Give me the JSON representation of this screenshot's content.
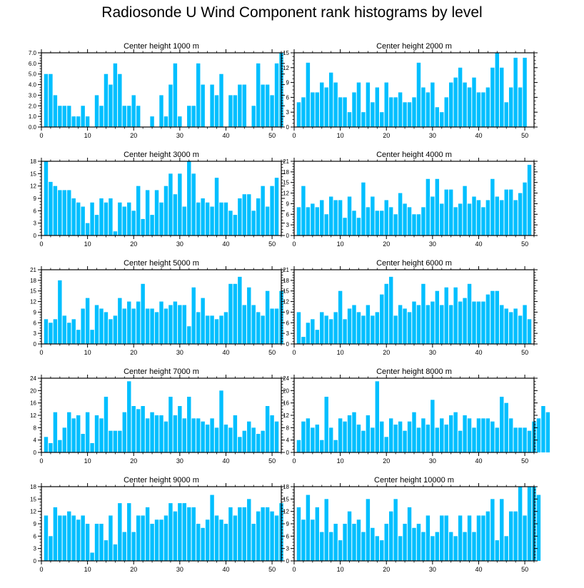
{
  "page_title": "Radiosonde U Wind Component rank histograms by level",
  "bar_color": "#00bfff",
  "chart_data": [
    {
      "type": "bar",
      "title": "Center height 1000 m",
      "xlim": [
        0,
        52
      ],
      "ylim": [
        0,
        7
      ],
      "yticks": [
        0,
        1,
        2,
        3,
        4,
        5,
        6,
        7
      ],
      "ytick_labels": [
        "0.0",
        "1.0",
        "2.0",
        "3.0",
        "4.0",
        "5.0",
        "6.0",
        "7.0"
      ],
      "xticks": [
        0,
        10,
        20,
        30,
        40,
        50
      ],
      "values": [
        5,
        5,
        3,
        2,
        2,
        2,
        1,
        1,
        2,
        1,
        0,
        3,
        2,
        5,
        4,
        6,
        5,
        2,
        2,
        3,
        2,
        0,
        0,
        1,
        0,
        3,
        1,
        4,
        6,
        1,
        0,
        2,
        2,
        6,
        4,
        0,
        4,
        3,
        5,
        0,
        3,
        3,
        4,
        4,
        0,
        2,
        6,
        4,
        4,
        3,
        6,
        7
      ]
    },
    {
      "type": "bar",
      "title": "Center height 2000 m",
      "xlim": [
        0,
        52
      ],
      "ylim": [
        0,
        15
      ],
      "yticks": [
        0,
        3,
        6,
        9,
        12,
        15
      ],
      "ytick_labels": [
        "0",
        "3",
        "6",
        "9",
        "12",
        "15"
      ],
      "xticks": [
        0,
        10,
        20,
        30,
        40,
        50
      ],
      "values": [
        5,
        6,
        13,
        7,
        7,
        9,
        8,
        11,
        9,
        6,
        6,
        3,
        7,
        9,
        3,
        9,
        5,
        8,
        3,
        9,
        6,
        6,
        7,
        5,
        5,
        6,
        13,
        8,
        7,
        9,
        4,
        3,
        6,
        9,
        10,
        12,
        9,
        8,
        10,
        7,
        7,
        8,
        12,
        15,
        12,
        5,
        8,
        14,
        8,
        14
      ]
    },
    {
      "type": "bar",
      "title": "Center height 3000 m",
      "xlim": [
        0,
        52
      ],
      "ylim": [
        0,
        18
      ],
      "yticks": [
        0,
        3,
        6,
        9,
        12,
        15,
        18
      ],
      "ytick_labels": [
        "0",
        "3",
        "6",
        "9",
        "12",
        "15",
        "18"
      ],
      "xticks": [
        0,
        10,
        20,
        30,
        40,
        50
      ],
      "values": [
        18,
        13,
        12,
        11,
        11,
        11,
        9,
        8,
        7,
        3,
        8,
        5,
        9,
        8,
        9,
        1,
        8,
        7,
        8,
        6,
        12,
        4,
        11,
        5,
        11,
        8,
        12,
        15,
        10,
        15,
        7,
        18,
        15,
        8,
        9,
        8,
        7,
        14,
        8,
        8,
        6,
        5,
        9,
        10,
        10,
        6,
        9,
        12,
        7,
        12,
        14
      ]
    },
    {
      "type": "bar",
      "title": "Center height 4000 m",
      "xlim": [
        0,
        52
      ],
      "ylim": [
        0,
        21
      ],
      "yticks": [
        0,
        3,
        6,
        9,
        12,
        15,
        18,
        21
      ],
      "ytick_labels": [
        "0",
        "3",
        "6",
        "9",
        "12",
        "15",
        "18",
        "21"
      ],
      "xticks": [
        0,
        10,
        20,
        30,
        40,
        50
      ],
      "values": [
        8,
        14,
        8,
        9,
        8,
        10,
        6,
        11,
        10,
        10,
        5,
        11,
        7,
        5,
        15,
        8,
        11,
        7,
        7,
        10,
        8,
        6,
        12,
        9,
        8,
        6,
        6,
        8,
        16,
        11,
        16,
        9,
        13,
        13,
        8,
        9,
        14,
        9,
        11,
        10,
        8,
        10,
        16,
        11,
        10,
        13,
        13,
        10,
        12,
        15,
        20
      ]
    },
    {
      "type": "bar",
      "title": "Center height 5000 m",
      "xlim": [
        0,
        52
      ],
      "ylim": [
        0,
        21
      ],
      "yticks": [
        0,
        3,
        6,
        9,
        12,
        15,
        18,
        21
      ],
      "ytick_labels": [
        "0",
        "3",
        "6",
        "9",
        "12",
        "15",
        "18",
        "21"
      ],
      "xticks": [
        0,
        10,
        20,
        30,
        40,
        50
      ],
      "values": [
        7,
        6,
        7,
        18,
        8,
        6,
        7,
        4,
        10,
        13,
        4,
        11,
        10,
        9,
        7,
        8,
        13,
        10,
        12,
        10,
        12,
        17,
        10,
        10,
        9,
        12,
        10,
        11,
        12,
        11,
        11,
        5,
        16,
        9,
        13,
        8,
        8,
        7,
        8,
        9,
        17,
        17,
        19,
        11,
        16,
        11,
        9,
        8,
        15,
        10,
        10,
        15
      ]
    },
    {
      "type": "bar",
      "title": "Center height 6000 m",
      "xlim": [
        0,
        52
      ],
      "ylim": [
        0,
        21
      ],
      "yticks": [
        0,
        3,
        6,
        9,
        12,
        15,
        18,
        21
      ],
      "ytick_labels": [
        "0",
        "3",
        "6",
        "9",
        "12",
        "15",
        "18",
        "21"
      ],
      "xticks": [
        0,
        10,
        20,
        30,
        40,
        50
      ],
      "values": [
        9,
        2,
        6,
        7,
        4,
        9,
        8,
        7,
        9,
        15,
        7,
        10,
        11,
        9,
        8,
        11,
        8,
        9,
        14,
        17,
        19,
        8,
        11,
        10,
        9,
        12,
        11,
        17,
        11,
        12,
        15,
        11,
        16,
        11,
        16,
        12,
        13,
        17,
        12,
        12,
        12,
        14,
        15,
        15,
        11,
        10,
        9,
        10,
        8,
        11,
        7
      ]
    },
    {
      "type": "bar",
      "title": "Center height 7000 m",
      "xlim": [
        0,
        52
      ],
      "ylim": [
        0,
        24
      ],
      "yticks": [
        0,
        4,
        8,
        12,
        16,
        20,
        24
      ],
      "ytick_labels": [
        "0",
        "4",
        "8",
        "12",
        "16",
        "20",
        "24"
      ],
      "xticks": [
        0,
        10,
        20,
        30,
        40,
        50
      ],
      "values": [
        5,
        3,
        13,
        4,
        8,
        13,
        11,
        12,
        6,
        13,
        3,
        12,
        11,
        18,
        7,
        7,
        7,
        13,
        23,
        15,
        14,
        15,
        11,
        13,
        12,
        12,
        10,
        18,
        12,
        15,
        11,
        18,
        11,
        11,
        10,
        9,
        11,
        8,
        20,
        9,
        8,
        12,
        5,
        7,
        10,
        8,
        6,
        7,
        15,
        12,
        10
      ]
    },
    {
      "type": "bar",
      "title": "Center height 8000 m",
      "xlim": [
        0,
        52
      ],
      "ylim": [
        0,
        24
      ],
      "yticks": [
        0,
        4,
        8,
        12,
        16,
        20,
        24
      ],
      "ytick_labels": [
        "0",
        "4",
        "8",
        "12",
        "16",
        "20",
        "24"
      ],
      "xticks": [
        0,
        10,
        20,
        30,
        40,
        50
      ],
      "values": [
        4,
        10,
        11,
        8,
        9,
        4,
        18,
        8,
        4,
        11,
        10,
        12,
        13,
        9,
        7,
        12,
        8,
        23,
        10,
        5,
        11,
        9,
        10,
        7,
        10,
        13,
        8,
        11,
        9,
        17,
        8,
        11,
        9,
        12,
        13,
        7,
        12,
        11,
        8,
        11,
        11,
        11,
        10,
        8,
        18,
        16,
        11,
        8,
        8,
        8,
        7,
        10,
        11,
        15,
        13
      ]
    },
    {
      "type": "bar",
      "title": "Center height 9000 m",
      "xlim": [
        0,
        52
      ],
      "ylim": [
        0,
        18
      ],
      "yticks": [
        0,
        3,
        6,
        9,
        12,
        15,
        18
      ],
      "ytick_labels": [
        "0",
        "3",
        "6",
        "9",
        "12",
        "15",
        "18"
      ],
      "xticks": [
        0,
        10,
        20,
        30,
        40,
        50
      ],
      "values": [
        11,
        6,
        13,
        11,
        11,
        12,
        11,
        10,
        11,
        9,
        2,
        9,
        9,
        5,
        11,
        4,
        14,
        7,
        14,
        7,
        11,
        11,
        13,
        9,
        10,
        10,
        11,
        14,
        12,
        14,
        14,
        13,
        13,
        9,
        8,
        10,
        16,
        11,
        10,
        9,
        13,
        11,
        13,
        13,
        15,
        9,
        12,
        13,
        13,
        12,
        11,
        14
      ]
    },
    {
      "type": "bar",
      "title": "Center height 10000 m",
      "xlim": [
        0,
        52
      ],
      "ylim": [
        0,
        18
      ],
      "yticks": [
        0,
        3,
        6,
        9,
        12,
        15,
        18
      ],
      "ytick_labels": [
        "0",
        "3",
        "6",
        "9",
        "12",
        "15",
        "18"
      ],
      "xticks": [
        0,
        10,
        20,
        30,
        40,
        50
      ],
      "values": [
        13,
        10,
        16,
        10,
        13,
        7,
        15,
        7,
        9,
        5,
        9,
        12,
        9,
        10,
        7,
        15,
        8,
        6,
        5,
        9,
        12,
        15,
        6,
        9,
        13,
        8,
        9,
        7,
        11,
        6,
        7,
        11,
        11,
        7,
        6,
        11,
        7,
        11,
        7,
        11,
        11,
        12,
        15,
        5,
        15,
        6,
        12,
        12,
        18,
        11,
        18,
        18,
        16
      ]
    }
  ]
}
